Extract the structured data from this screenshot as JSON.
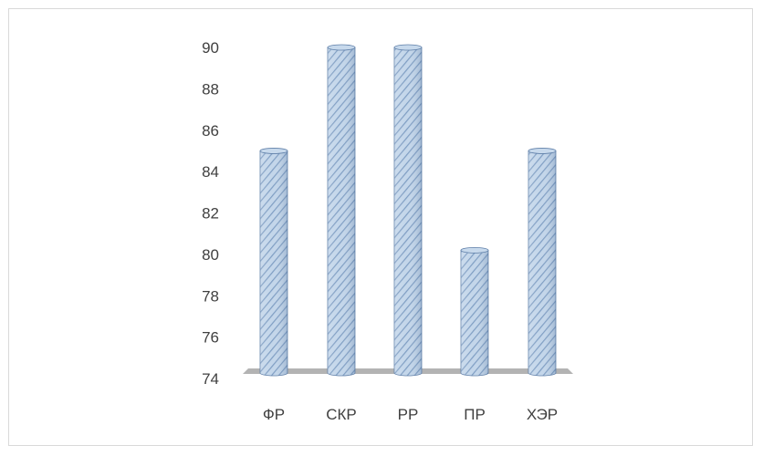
{
  "chart_data": {
    "type": "bar",
    "categories": [
      "ФР",
      "СКР",
      "РР",
      "ПР",
      "ХЭР"
    ],
    "values": [
      85,
      90,
      90,
      80.2,
      85
    ],
    "ylim": [
      74,
      90
    ],
    "yticks": [
      74,
      76,
      78,
      80,
      82,
      84,
      86,
      88,
      90
    ],
    "grid": false,
    "colors": {
      "bar_fill": "#b7cde6",
      "bar_hatch": "#6f8fb8",
      "bar_edge": "#5f7fa8",
      "floor": "#b3b3b3"
    }
  }
}
